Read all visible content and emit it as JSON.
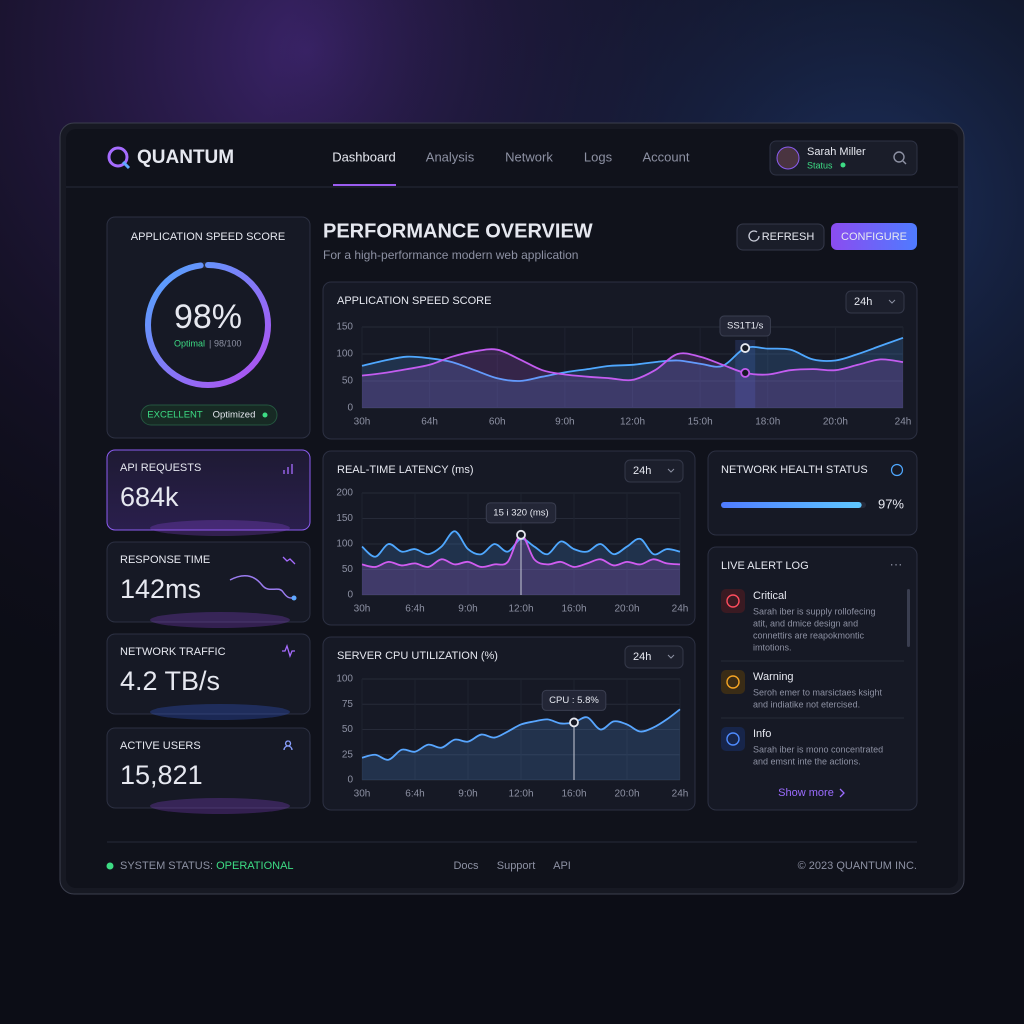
{
  "header": {
    "logo": "QUANTUM",
    "nav": [
      "Dashboard",
      "Analysis",
      "Network",
      "Logs",
      "Account"
    ],
    "user": {
      "name": "Sarah Miller",
      "status": "Status"
    }
  },
  "score_card": {
    "title": "APPLICATION SPEED SCORE",
    "score": {
      "value": 98,
      "label": "98%"
    },
    "status": "Optimal",
    "detail": "98/100",
    "badge": "EXCELLENT",
    "badge_note": "Optimized"
  },
  "overview": {
    "title": "PERFORMANCE OVERVIEW",
    "subtitle": "For a high-performance modern web application",
    "buttons": [
      "REFRESH",
      "CONFIGURE"
    ]
  },
  "metrics": [
    {
      "label": "API REQUESTS",
      "value": "684k"
    },
    {
      "label": "RESPONSE TIME",
      "value": "142ms"
    },
    {
      "label": "NETWORK TRAFFIC",
      "value": "4.2 TB/s"
    },
    {
      "label": "ACTIVE USERS",
      "value": "15,821"
    }
  ],
  "network_health": {
    "title": "NETWORK HEALTH STATUS",
    "value": 97,
    "label": "97%"
  },
  "alerts": {
    "title": "LIVE ALERT LOG",
    "items": [
      {
        "level": "Critical",
        "lines": [
          "Sarah iber is supply rollofecing",
          "atit, and dmice design and",
          "connettirs are reapokmontic",
          "imtotions."
        ]
      },
      {
        "level": "Warning",
        "lines": [
          "Seroh emer to marsictaes ksight",
          "and indiatike not etercised."
        ]
      },
      {
        "level": "Info",
        "lines": [
          "Sarah iber is mono concentrated",
          "and emsnt inte the actions."
        ]
      }
    ],
    "more": "Show more"
  },
  "footer": {
    "status_label": "SYSTEM STATUS:",
    "status": "OPERATIONAL",
    "links": [
      "Docs",
      "Support",
      "API"
    ],
    "copyright": "© 2023 QUANTUM INC."
  },
  "chart_data": [
    {
      "type": "area",
      "title": "APPLICATION SPEED SCORE",
      "range": "24h",
      "tooltip": "SS1T1/s",
      "categories": [
        "30h",
        null,
        null,
        "64h",
        null,
        null,
        "60h",
        null,
        null,
        "9:0h",
        null,
        null,
        "12:0h",
        null,
        null,
        "15:0h",
        null,
        null,
        "18:0h",
        null,
        null,
        "20:0h",
        null,
        null,
        "24h"
      ],
      "series": [
        {
          "color": "#4fa8ff",
          "values": [
            78,
            88,
            95,
            92,
            85,
            70,
            55,
            50,
            58,
            66,
            72,
            78,
            80,
            85,
            88,
            82,
            78,
            111,
            110,
            108,
            90,
            88,
            100,
            115,
            130
          ]
        },
        {
          "color": "#c35cf0",
          "values": [
            60,
            65,
            72,
            80,
            95,
            105,
            108,
            90,
            70,
            62,
            58,
            55,
            52,
            70,
            100,
            95,
            80,
            65,
            62,
            70,
            72,
            70,
            80,
            90,
            85
          ]
        }
      ],
      "ylim": [
        0,
        150
      ],
      "yticks": [
        0,
        50,
        100,
        150
      ],
      "grid": true
    },
    {
      "type": "area",
      "title": "REAL-TIME LATENCY (ms)",
      "range": "24h",
      "tooltip": "15 i 320 (ms)",
      "categories": [
        "30h",
        null,
        null,
        null,
        "6:4h",
        null,
        null,
        null,
        "9:0h",
        null,
        null,
        null,
        "12:0h",
        null,
        null,
        null,
        "16:0h",
        null,
        null,
        null,
        "20:0h",
        null,
        null,
        null,
        "24h"
      ],
      "series": [
        {
          "color": "#4fa8ff",
          "values": [
            95,
            75,
            100,
            85,
            90,
            80,
            95,
            125,
            90,
            80,
            100,
            85,
            110,
            95,
            80,
            105,
            90,
            85,
            100,
            80,
            95,
            110,
            80,
            90,
            85
          ]
        },
        {
          "color": "#d05cf0",
          "values": [
            60,
            55,
            65,
            58,
            62,
            55,
            70,
            60,
            65,
            55,
            60,
            65,
            118,
            70,
            60,
            65,
            55,
            62,
            70,
            58,
            65,
            60,
            70,
            62,
            60
          ]
        }
      ],
      "ylim": [
        0,
        200
      ],
      "yticks": [
        0,
        50,
        100,
        150,
        200
      ],
      "grid": true
    },
    {
      "type": "area",
      "title": "SERVER CPU UTILIZATION (%)",
      "range": "24h",
      "tooltip": "CPU : 5.8%",
      "categories": [
        "30h",
        null,
        null,
        null,
        "6:4h",
        null,
        null,
        null,
        "9:0h",
        null,
        null,
        null,
        "12:0h",
        null,
        null,
        null,
        "16:0h",
        null,
        null,
        null,
        "20:0h",
        null,
        null,
        null,
        "24h"
      ],
      "series": [
        {
          "color": "#58a6ff",
          "values": [
            22,
            25,
            20,
            30,
            28,
            35,
            32,
            40,
            38,
            45,
            42,
            48,
            55,
            58,
            60,
            56,
            57,
            62,
            50,
            58,
            55,
            48,
            52,
            60,
            70
          ]
        }
      ],
      "ylim": [
        0,
        100
      ],
      "yticks": [
        0,
        25,
        50,
        75,
        100
      ],
      "grid": true
    }
  ]
}
